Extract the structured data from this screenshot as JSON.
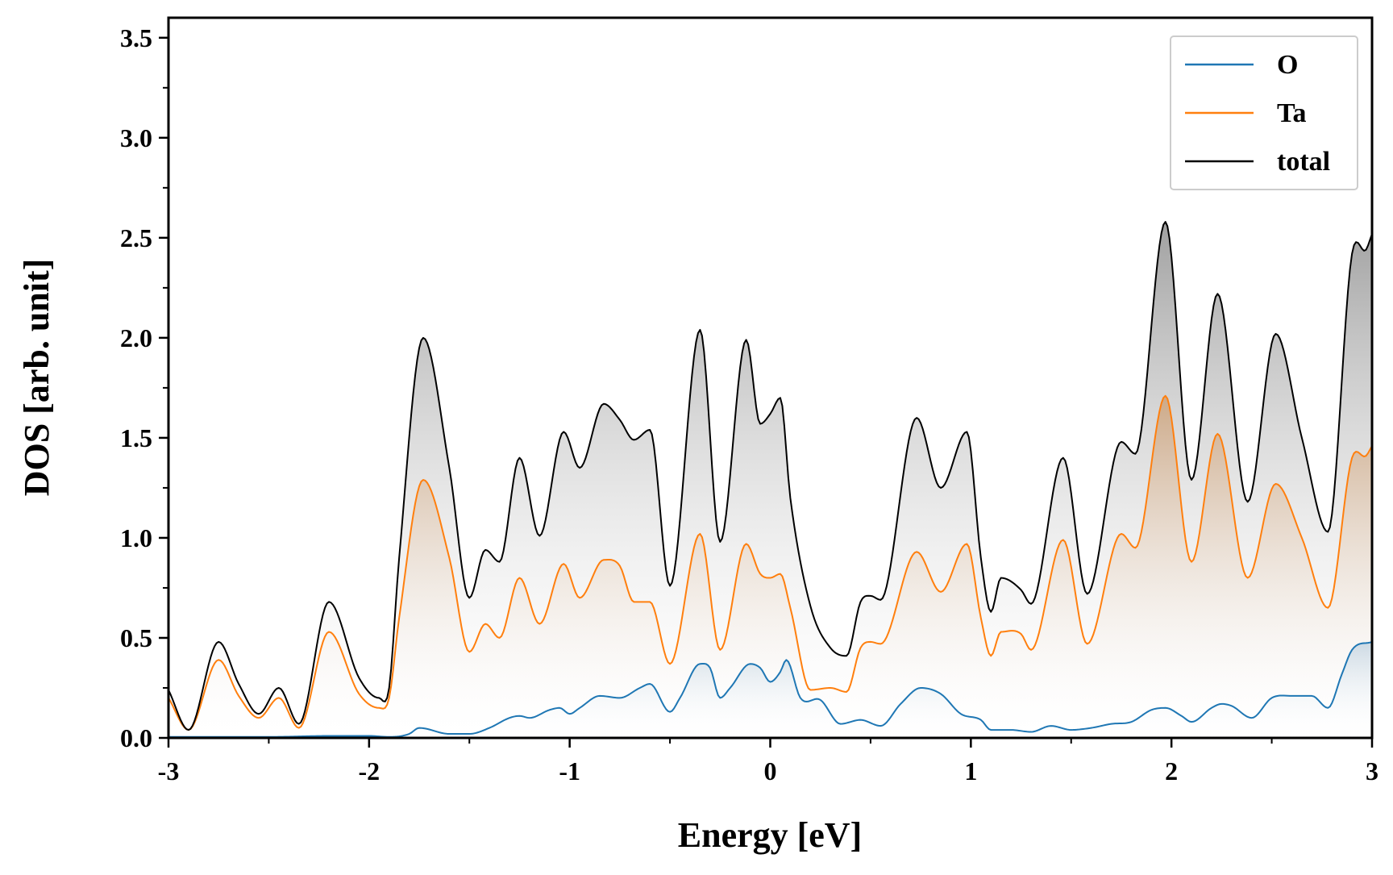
{
  "chart_data": {
    "type": "line",
    "title": "",
    "xlabel": "Energy [eV]",
    "ylabel": "DOS [arb. unit]",
    "xlim": [
      -3,
      3
    ],
    "ylim": [
      0,
      3.6
    ],
    "xticks": [
      -3,
      -2,
      -1,
      0,
      1,
      2,
      3
    ],
    "xtick_labels": [
      "-3",
      "-2",
      "-1",
      "0",
      "1",
      "2",
      "3"
    ],
    "yticks": [
      0.0,
      0.5,
      1.0,
      1.5,
      2.0,
      2.5,
      3.0,
      3.5
    ],
    "ytick_labels": [
      "0.0",
      "0.5",
      "1.0",
      "1.5",
      "2.0",
      "2.5",
      "3.0",
      "3.5"
    ],
    "grid": false,
    "legend_position": "top-right",
    "series": [
      {
        "name": "O",
        "color": "#1f77b4",
        "x": [
          -3.0,
          -2.9,
          -2.75,
          -2.5,
          -2.2,
          -2.0,
          -1.9,
          -1.8,
          -1.75,
          -1.6,
          -1.5,
          -1.4,
          -1.3,
          -1.25,
          -1.2,
          -1.1,
          -1.05,
          -1.0,
          -0.95,
          -0.85,
          -0.75,
          -0.65,
          -0.6,
          -0.5,
          -0.45,
          -0.35,
          -0.3,
          -0.25,
          -0.2,
          -0.1,
          -0.05,
          0.0,
          0.05,
          0.08,
          0.15,
          0.25,
          0.35,
          0.45,
          0.55,
          0.65,
          0.75,
          0.85,
          0.95,
          1.05,
          1.1,
          1.2,
          1.3,
          1.4,
          1.5,
          1.6,
          1.7,
          1.8,
          1.9,
          1.97,
          2.05,
          2.1,
          2.2,
          2.25,
          2.3,
          2.4,
          2.5,
          2.6,
          2.7,
          2.78,
          2.85,
          2.9,
          3.0
        ],
        "values": [
          0.005,
          0.005,
          0.005,
          0.005,
          0.01,
          0.01,
          0.005,
          0.02,
          0.05,
          0.02,
          0.02,
          0.05,
          0.1,
          0.11,
          0.1,
          0.14,
          0.15,
          0.12,
          0.15,
          0.21,
          0.2,
          0.25,
          0.27,
          0.13,
          0.2,
          0.37,
          0.35,
          0.2,
          0.25,
          0.37,
          0.35,
          0.28,
          0.33,
          0.39,
          0.2,
          0.19,
          0.07,
          0.09,
          0.06,
          0.17,
          0.25,
          0.22,
          0.12,
          0.09,
          0.04,
          0.04,
          0.03,
          0.06,
          0.04,
          0.05,
          0.07,
          0.08,
          0.14,
          0.15,
          0.11,
          0.08,
          0.15,
          0.17,
          0.16,
          0.1,
          0.2,
          0.21,
          0.21,
          0.15,
          0.32,
          0.44,
          0.48
        ]
      },
      {
        "name": "Ta",
        "color": "#ff7f0e",
        "x": [
          -3.0,
          -2.9,
          -2.75,
          -2.65,
          -2.55,
          -2.45,
          -2.35,
          -2.2,
          -2.05,
          -1.95,
          -1.9,
          -1.85,
          -1.73,
          -1.6,
          -1.5,
          -1.42,
          -1.35,
          -1.25,
          -1.15,
          -1.03,
          -0.95,
          -0.83,
          -0.75,
          -0.68,
          -0.6,
          -0.5,
          -0.35,
          -0.25,
          -0.12,
          -0.05,
          0.0,
          0.05,
          0.1,
          0.2,
          0.3,
          0.38,
          0.45,
          0.5,
          0.55,
          0.73,
          0.85,
          0.98,
          1.05,
          1.1,
          1.15,
          1.25,
          1.3,
          1.46,
          1.58,
          1.75,
          1.82,
          1.97,
          2.1,
          2.23,
          2.38,
          2.52,
          2.65,
          2.78,
          2.9,
          2.97,
          3.0
        ],
        "values": [
          0.2,
          0.04,
          0.39,
          0.21,
          0.1,
          0.2,
          0.05,
          0.53,
          0.22,
          0.15,
          0.2,
          0.6,
          1.29,
          0.9,
          0.43,
          0.57,
          0.5,
          0.8,
          0.57,
          0.87,
          0.7,
          0.89,
          0.86,
          0.68,
          0.68,
          0.37,
          1.02,
          0.44,
          0.97,
          0.82,
          0.8,
          0.82,
          0.65,
          0.24,
          0.25,
          0.23,
          0.45,
          0.48,
          0.47,
          0.93,
          0.73,
          0.97,
          0.6,
          0.41,
          0.53,
          0.52,
          0.44,
          0.99,
          0.47,
          1.02,
          0.95,
          1.71,
          0.88,
          1.52,
          0.8,
          1.27,
          1.0,
          0.65,
          1.4,
          1.41,
          1.46
        ]
      },
      {
        "name": "total",
        "color": "#000000",
        "x": [
          -3.0,
          -2.9,
          -2.75,
          -2.65,
          -2.55,
          -2.45,
          -2.35,
          -2.2,
          -2.05,
          -1.95,
          -1.9,
          -1.85,
          -1.73,
          -1.6,
          -1.5,
          -1.42,
          -1.35,
          -1.25,
          -1.15,
          -1.03,
          -0.95,
          -0.83,
          -0.75,
          -0.68,
          -0.6,
          -0.5,
          -0.35,
          -0.25,
          -0.12,
          -0.05,
          0.0,
          0.05,
          0.1,
          0.2,
          0.3,
          0.38,
          0.45,
          0.5,
          0.55,
          0.73,
          0.85,
          0.98,
          1.05,
          1.1,
          1.15,
          1.25,
          1.3,
          1.46,
          1.58,
          1.75,
          1.82,
          1.97,
          2.1,
          2.23,
          2.38,
          2.52,
          2.65,
          2.78,
          2.9,
          2.97,
          3.0
        ],
        "values": [
          0.24,
          0.04,
          0.48,
          0.27,
          0.12,
          0.25,
          0.07,
          0.68,
          0.3,
          0.2,
          0.25,
          0.9,
          2.0,
          1.35,
          0.7,
          0.94,
          0.88,
          1.4,
          1.01,
          1.53,
          1.35,
          1.67,
          1.59,
          1.49,
          1.54,
          0.76,
          2.04,
          0.98,
          1.99,
          1.57,
          1.62,
          1.7,
          1.2,
          0.66,
          0.45,
          0.41,
          0.68,
          0.71,
          0.69,
          1.6,
          1.25,
          1.53,
          0.9,
          0.63,
          0.8,
          0.74,
          0.67,
          1.4,
          0.72,
          1.48,
          1.42,
          2.58,
          1.29,
          2.22,
          1.18,
          2.02,
          1.5,
          1.03,
          2.42,
          2.44,
          2.52
        ]
      }
    ]
  }
}
